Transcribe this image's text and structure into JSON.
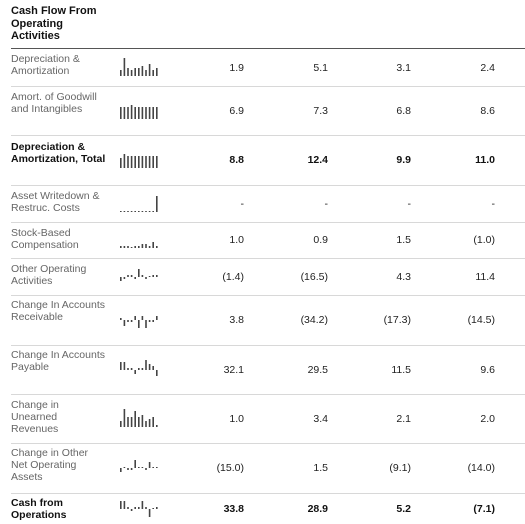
{
  "table": {
    "title": "Cash Flow From Operating Activities",
    "rows": [
      {
        "label": "Depreciation & Amortization",
        "values": [
          "1.9",
          "5.1",
          "3.1",
          "2.4"
        ],
        "total": false,
        "spark": [
          3,
          9,
          4,
          3,
          4,
          4,
          5,
          3,
          6,
          3,
          4
        ]
      },
      {
        "label": "Amort. of Goodwill and Intangibles",
        "values": [
          "6.9",
          "7.3",
          "6.8",
          "8.6"
        ],
        "total": false,
        "spark": [
          6,
          6,
          6,
          7,
          6,
          6,
          6,
          6,
          6,
          6,
          6
        ]
      },
      {
        "label": "Depreciation & Amortization, Total",
        "values": [
          "8.8",
          "12.4",
          "9.9",
          "11.0"
        ],
        "total": true,
        "spark": [
          5,
          7,
          6,
          6,
          6,
          6,
          6,
          6,
          6,
          6,
          6
        ]
      },
      {
        "label": "Asset Writedown & Restruc. Costs",
        "values": [
          "-",
          "-",
          "-",
          "-"
        ],
        "total": false,
        "spark": [
          0,
          0,
          0,
          0,
          0,
          0,
          0,
          0,
          0,
          0,
          8
        ]
      },
      {
        "label": "Stock-Based Compensation",
        "values": [
          "1.0",
          "0.9",
          "1.5",
          "(1.0)"
        ],
        "total": false,
        "spark": [
          1,
          1,
          1,
          0,
          1,
          1,
          2,
          2,
          1,
          3,
          1
        ]
      },
      {
        "label": "Other Operating Activities",
        "values": [
          "(1.4)",
          "(16.5)",
          "4.3",
          "11.4"
        ],
        "total": false,
        "spark": [
          -2,
          -1,
          1,
          1,
          -1,
          4,
          1,
          -1,
          0,
          1,
          1
        ]
      },
      {
        "label": "Change In Accounts Receivable",
        "values": [
          "3.8",
          "(34.2)",
          "(17.3)",
          "(14.5)"
        ],
        "total": false,
        "spark": [
          1,
          -3,
          -1,
          -1,
          2,
          -4,
          2,
          -4,
          -1,
          -1,
          2
        ]
      },
      {
        "label": "Change In Accounts Payable",
        "values": [
          "32.1",
          "29.5",
          "11.5",
          "9.6"
        ],
        "total": false,
        "spark": [
          4,
          4,
          1,
          1,
          -2,
          1,
          1,
          5,
          3,
          2,
          -3
        ]
      },
      {
        "label": "Change in Unearned Revenues",
        "values": [
          "1.0",
          "3.4",
          "2.1",
          "2.0"
        ],
        "total": false,
        "spark": [
          3,
          9,
          5,
          5,
          8,
          5,
          6,
          3,
          4,
          5,
          1
        ]
      },
      {
        "label": "Change in Other Net Operating Assets",
        "values": [
          "(15.0)",
          "1.5",
          "(9.1)",
          "(14.0)"
        ],
        "total": false,
        "spark": [
          -2,
          0,
          -1,
          -1,
          4,
          0,
          0,
          -1,
          3,
          0,
          0
        ]
      },
      {
        "label": "Cash from Operations",
        "values": [
          "33.8",
          "28.9",
          "5.2",
          "(7.1)"
        ],
        "total": true,
        "spark": [
          4,
          4,
          1,
          -1,
          1,
          1,
          4,
          1,
          -4,
          0,
          1
        ]
      }
    ]
  }
}
